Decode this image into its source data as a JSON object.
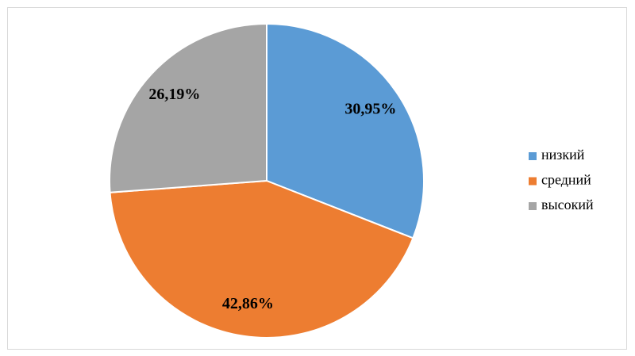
{
  "chart_data": {
    "type": "pie",
    "categories": [
      "низкий",
      "средний",
      "высокий"
    ],
    "values": [
      30.95,
      42.86,
      26.19
    ],
    "value_labels": [
      "30,95%",
      "42,86%",
      "26,19%"
    ],
    "colors": [
      "#5b9bd5",
      "#ed7d31",
      "#a5a5a5"
    ],
    "legend": "right"
  }
}
